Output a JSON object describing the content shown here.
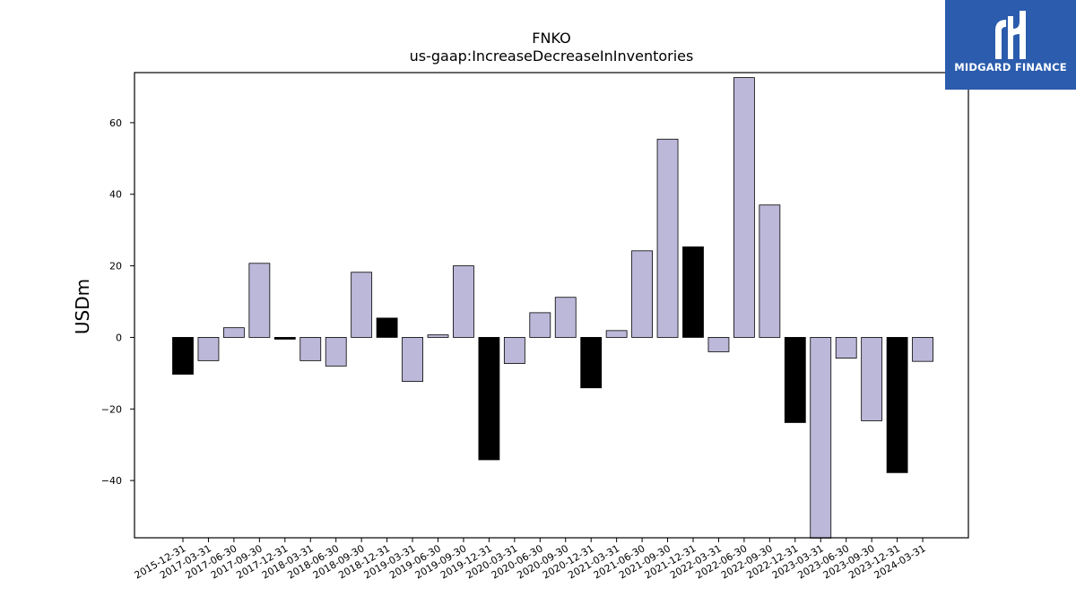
{
  "brand": {
    "name": "MIDGARD FINANCE",
    "logo_icon": "midgard-mark-icon",
    "background_color": "#2b5cad"
  },
  "chart_data": {
    "type": "bar",
    "title": "FNKO",
    "subtitle": "us-gaap:IncreaseDecreaseInInventories",
    "xlabel": "",
    "ylabel": "USDm",
    "ylim": [
      -56,
      74
    ],
    "yticks": [
      -40,
      -20,
      0,
      20,
      40,
      60
    ],
    "grid": false,
    "colors": {
      "annual": "#000000",
      "quarterly": "#bcb8d9",
      "edge": "#000000"
    },
    "categories": [
      "2015-12-31",
      "2017-03-31",
      "2017-06-30",
      "2017-09-30",
      "2017-12-31",
      "2018-03-31",
      "2018-06-30",
      "2018-09-30",
      "2018-12-31",
      "2019-03-31",
      "2019-06-30",
      "2019-09-30",
      "2019-12-31",
      "2020-03-31",
      "2020-06-30",
      "2020-09-30",
      "2020-12-31",
      "2021-03-31",
      "2021-06-30",
      "2021-09-30",
      "2021-12-31",
      "2022-03-31",
      "2022-06-30",
      "2022-09-30",
      "2022-12-31",
      "2023-03-31",
      "2023-06-30",
      "2023-09-30",
      "2023-12-31",
      "2024-03-31"
    ],
    "values": [
      -10.3,
      -6.5,
      2.7,
      20.7,
      -0.5,
      -6.5,
      -8.0,
      18.2,
      5.4,
      -12.3,
      0.7,
      20.0,
      -34.2,
      -7.3,
      6.9,
      11.2,
      -14.1,
      1.9,
      24.2,
      55.4,
      25.3,
      -4.0,
      72.6,
      37.0,
      -23.8,
      -56.1,
      -5.8,
      -23.3,
      -37.8,
      -6.7
    ],
    "period_type": [
      "annual",
      "quarterly",
      "quarterly",
      "quarterly",
      "annual",
      "quarterly",
      "quarterly",
      "quarterly",
      "annual",
      "quarterly",
      "quarterly",
      "quarterly",
      "annual",
      "quarterly",
      "quarterly",
      "quarterly",
      "annual",
      "quarterly",
      "quarterly",
      "quarterly",
      "annual",
      "quarterly",
      "quarterly",
      "quarterly",
      "annual",
      "quarterly",
      "quarterly",
      "quarterly",
      "annual",
      "quarterly"
    ]
  }
}
